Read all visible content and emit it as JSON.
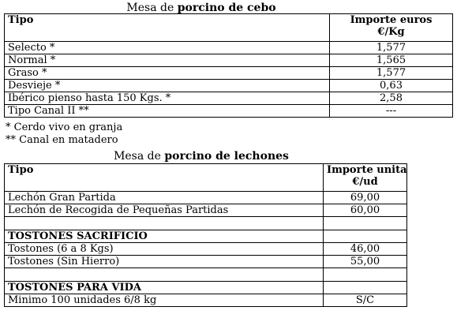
{
  "cebo": {
    "title_prefix": "Mesa de",
    "title_bold": "porcino de cebo",
    "col_tipo": "Tipo",
    "col_importe_line1": "Importe euros",
    "col_importe_line2": "€/Kg",
    "rows": [
      {
        "tipo": "Selecto *",
        "importe": "1,577"
      },
      {
        "tipo": "Normal *",
        "importe": "1,565"
      },
      {
        "tipo": "Graso *",
        "importe": "1,577"
      },
      {
        "tipo": "Desvieje *",
        "importe": "0,63"
      },
      {
        "tipo": "Ibérico pienso hasta 150 Kgs. *",
        "importe": "2,58"
      },
      {
        "tipo": "Tipo Canal II **",
        "importe": "---"
      }
    ],
    "notes": [
      "* Cerdo vivo en granja",
      "** Canal en matadero"
    ]
  },
  "lechones": {
    "title_prefix": "Mesa de",
    "title_bold": "porcino de lechones",
    "col_tipo": "Tipo",
    "col_importe_line1": "Importe unitario",
    "col_importe_line2": "€/ud",
    "rows": [
      {
        "tipo": "Lechón Gran Partida",
        "importe": "69,00"
      },
      {
        "tipo": "Lechón de Recogida de Pequeñas Partidas",
        "importe": "60,00"
      }
    ],
    "section_sacrificio": "TOSTONES SACRIFICIO",
    "sacrificio_rows": [
      {
        "tipo": "Tostones (6 a 8 Kgs)",
        "importe": "46,00"
      },
      {
        "tipo": "Tostones  (Sin Hierro)",
        "importe": "55,00"
      }
    ],
    "section_vida": "TOSTONES PARA VIDA",
    "vida_rows": [
      {
        "tipo": "Minimo 100 unidades 6/8 kg",
        "importe": "S/C"
      }
    ]
  }
}
